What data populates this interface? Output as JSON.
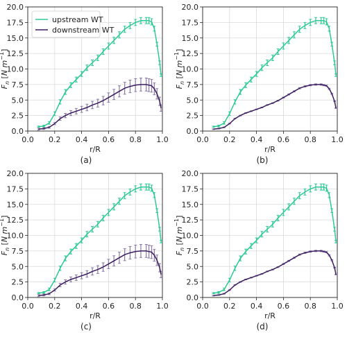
{
  "colors": {
    "upstream": "#2ec995",
    "downstream": "#3b1d5e",
    "downstream_err": "#8b7aa8",
    "grid": "#d9d9d9"
  },
  "chart_data": [
    {
      "type": "line",
      "panel_label": "(a)",
      "xlabel": "r/R",
      "ylabel": "F_n [N m^-1]",
      "xlim": [
        0.0,
        1.0
      ],
      "ylim": [
        0.0,
        20.0
      ],
      "xticks": [
        "0.0",
        "0.2",
        "0.4",
        "0.6",
        "0.8",
        "1.0"
      ],
      "yticks": [
        "0.0",
        "2.5",
        "5.0",
        "7.5",
        "10.0",
        "12.5",
        "15.0",
        "17.5",
        "20.0"
      ],
      "grid": true,
      "legend": "top-left",
      "downstream_errors": "large",
      "x": [
        0.08,
        0.12,
        0.16,
        0.2,
        0.24,
        0.28,
        0.32,
        0.36,
        0.4,
        0.44,
        0.48,
        0.52,
        0.56,
        0.6,
        0.64,
        0.68,
        0.72,
        0.76,
        0.8,
        0.84,
        0.88,
        0.9,
        0.92,
        0.94,
        0.96,
        0.98,
        0.99
      ],
      "series": [
        {
          "name": "upstream WT",
          "values": [
            0.7,
            0.8,
            1.3,
            2.8,
            4.7,
            6.3,
            7.4,
            8.3,
            9.2,
            10.2,
            11.0,
            11.8,
            12.8,
            13.7,
            14.6,
            15.5,
            16.4,
            17.0,
            17.5,
            17.8,
            17.8,
            17.8,
            17.6,
            16.5,
            14.0,
            11.0,
            9.0
          ]
        },
        {
          "name": "downstream WT",
          "values": [
            0.3,
            0.4,
            0.6,
            1.2,
            2.0,
            2.5,
            2.9,
            3.2,
            3.5,
            3.8,
            4.2,
            4.5,
            4.9,
            5.4,
            5.9,
            6.4,
            6.9,
            7.2,
            7.4,
            7.5,
            7.5,
            7.4,
            7.3,
            6.8,
            6.0,
            4.8,
            3.7
          ]
        }
      ]
    },
    {
      "type": "line",
      "panel_label": "(b)",
      "xlabel": "r/R",
      "ylabel": "F_n [N m^-1]",
      "xlim": [
        0.0,
        1.0
      ],
      "ylim": [
        0.0,
        20.0
      ],
      "xticks": [
        "0.0",
        "0.2",
        "0.4",
        "0.6",
        "0.8",
        "1.0"
      ],
      "yticks": [
        "0.0",
        "2.5",
        "5.0",
        "7.5",
        "10.0",
        "12.5",
        "15.0",
        "17.5",
        "20.0"
      ],
      "grid": true,
      "downstream_errors": "small",
      "x": [
        0.08,
        0.12,
        0.16,
        0.2,
        0.24,
        0.28,
        0.32,
        0.36,
        0.4,
        0.44,
        0.48,
        0.52,
        0.56,
        0.6,
        0.64,
        0.68,
        0.72,
        0.76,
        0.8,
        0.84,
        0.88,
        0.9,
        0.92,
        0.94,
        0.96,
        0.98,
        0.99
      ],
      "series": [
        {
          "name": "upstream WT",
          "values": [
            0.7,
            0.8,
            1.3,
            2.8,
            4.7,
            6.3,
            7.4,
            8.3,
            9.2,
            10.2,
            11.0,
            11.8,
            12.8,
            13.7,
            14.6,
            15.5,
            16.4,
            17.0,
            17.5,
            17.8,
            17.8,
            17.8,
            17.6,
            16.5,
            14.0,
            11.0,
            9.0
          ]
        },
        {
          "name": "downstream WT",
          "values": [
            0.3,
            0.4,
            0.6,
            1.2,
            2.0,
            2.5,
            2.9,
            3.2,
            3.5,
            3.8,
            4.2,
            4.5,
            4.9,
            5.4,
            5.9,
            6.4,
            6.9,
            7.2,
            7.4,
            7.5,
            7.5,
            7.4,
            7.3,
            6.8,
            6.0,
            4.8,
            3.7
          ]
        }
      ]
    },
    {
      "type": "line",
      "panel_label": "(c)",
      "xlabel": "r/R",
      "ylabel": "F_n [N m^-1]",
      "xlim": [
        0.0,
        1.0
      ],
      "ylim": [
        0.0,
        20.0
      ],
      "xticks": [
        "0.0",
        "0.2",
        "0.4",
        "0.6",
        "0.8",
        "1.0"
      ],
      "yticks": [
        "0.0",
        "2.5",
        "5.0",
        "7.5",
        "10.0",
        "12.5",
        "15.0",
        "17.5",
        "20.0"
      ],
      "grid": true,
      "downstream_errors": "large",
      "x": [
        0.08,
        0.12,
        0.16,
        0.2,
        0.24,
        0.28,
        0.32,
        0.36,
        0.4,
        0.44,
        0.48,
        0.52,
        0.56,
        0.6,
        0.64,
        0.68,
        0.72,
        0.76,
        0.8,
        0.84,
        0.88,
        0.9,
        0.92,
        0.94,
        0.96,
        0.98,
        0.99
      ],
      "series": [
        {
          "name": "upstream WT",
          "values": [
            0.7,
            0.8,
            1.3,
            2.8,
            4.7,
            6.3,
            7.4,
            8.3,
            9.2,
            10.2,
            11.0,
            11.8,
            12.8,
            13.7,
            14.6,
            15.5,
            16.4,
            17.0,
            17.5,
            17.8,
            17.8,
            17.8,
            17.6,
            16.5,
            14.0,
            11.0,
            9.0
          ]
        },
        {
          "name": "downstream WT",
          "values": [
            0.3,
            0.4,
            0.6,
            1.2,
            2.0,
            2.5,
            2.9,
            3.2,
            3.5,
            3.8,
            4.2,
            4.5,
            4.9,
            5.4,
            5.9,
            6.4,
            6.9,
            7.2,
            7.4,
            7.5,
            7.5,
            7.4,
            7.3,
            6.8,
            6.0,
            4.8,
            3.7
          ]
        }
      ]
    },
    {
      "type": "line",
      "panel_label": "(d)",
      "xlabel": "r/R",
      "ylabel": "F_n [N m^-1]",
      "xlim": [
        0.0,
        1.0
      ],
      "ylim": [
        0.0,
        20.0
      ],
      "xticks": [
        "0.0",
        "0.2",
        "0.4",
        "0.6",
        "0.8",
        "1.0"
      ],
      "yticks": [
        "0.0",
        "2.5",
        "5.0",
        "7.5",
        "10.0",
        "12.5",
        "15.0",
        "17.5",
        "20.0"
      ],
      "grid": true,
      "downstream_errors": "small",
      "x": [
        0.08,
        0.12,
        0.16,
        0.2,
        0.24,
        0.28,
        0.32,
        0.36,
        0.4,
        0.44,
        0.48,
        0.52,
        0.56,
        0.6,
        0.64,
        0.68,
        0.72,
        0.76,
        0.8,
        0.84,
        0.88,
        0.9,
        0.92,
        0.94,
        0.96,
        0.98,
        0.99
      ],
      "series": [
        {
          "name": "upstream WT",
          "values": [
            0.7,
            0.8,
            1.3,
            2.8,
            4.7,
            6.3,
            7.4,
            8.3,
            9.2,
            10.2,
            11.0,
            11.8,
            12.8,
            13.7,
            14.6,
            15.5,
            16.4,
            17.0,
            17.5,
            17.8,
            17.8,
            17.8,
            17.6,
            16.5,
            14.0,
            11.0,
            9.0
          ]
        },
        {
          "name": "downstream WT",
          "values": [
            0.3,
            0.4,
            0.6,
            1.2,
            2.0,
            2.5,
            2.9,
            3.2,
            3.5,
            3.8,
            4.2,
            4.5,
            4.9,
            5.4,
            5.9,
            6.4,
            6.9,
            7.2,
            7.4,
            7.5,
            7.5,
            7.4,
            7.3,
            6.8,
            6.0,
            4.8,
            3.7
          ]
        }
      ]
    }
  ]
}
